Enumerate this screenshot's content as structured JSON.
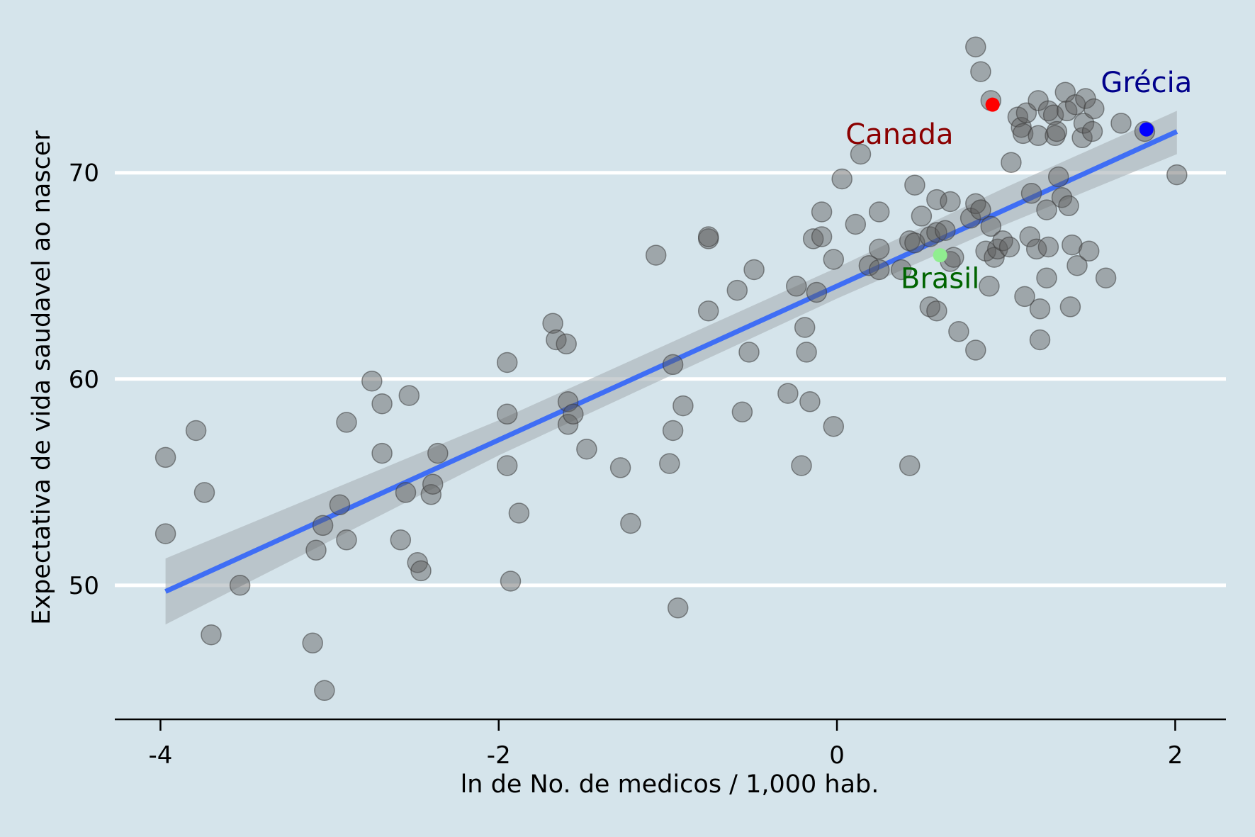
{
  "chart_data": {
    "type": "scatter",
    "title": "",
    "xlabel": "ln de No. de medicos / 1,000 hab.",
    "ylabel": "Expectativa de vida saudavel ao nascer",
    "xlim": [
      -4.27,
      2.3
    ],
    "ylim": [
      43.5,
      77.0
    ],
    "x_ticks": [
      -4,
      -2,
      0,
      2
    ],
    "x_tick_labels": [
      "-4",
      "-2",
      "0",
      "2"
    ],
    "y_ticks": [
      50,
      60,
      70
    ],
    "y_tick_labels": [
      "50",
      "60",
      "70"
    ],
    "grid": "horizontal",
    "colors": {
      "background": "#d5e4eb",
      "grid": "#ffffff",
      "points": "#5a5a5a",
      "fit_line": "#3f6ef5",
      "ci_band": "#a8b0b6"
    },
    "fit_line": {
      "x": [
        -3.97,
        2.01
      ],
      "y": [
        49.7,
        72.0
      ]
    },
    "ci_band": {
      "x": [
        -3.97,
        -2.0,
        0.0,
        1.0,
        2.01
      ],
      "upper": [
        51.3,
        58.0,
        65.4,
        69.3,
        73.0
      ],
      "lower": [
        48.1,
        56.3,
        63.9,
        67.5,
        70.9
      ]
    },
    "points": [
      [
        -3.97,
        56.2
      ],
      [
        -3.97,
        52.5
      ],
      [
        -3.79,
        57.5
      ],
      [
        -3.74,
        54.5
      ],
      [
        -3.7,
        47.6
      ],
      [
        -3.53,
        50.0
      ],
      [
        -3.1,
        47.2
      ],
      [
        -3.08,
        51.7
      ],
      [
        -3.04,
        52.9
      ],
      [
        -3.03,
        44.9
      ],
      [
        -2.94,
        53.9
      ],
      [
        -2.9,
        57.9
      ],
      [
        -2.9,
        52.2
      ],
      [
        -2.75,
        59.9
      ],
      [
        -2.69,
        58.8
      ],
      [
        -2.69,
        56.4
      ],
      [
        -2.58,
        52.2
      ],
      [
        -2.55,
        54.5
      ],
      [
        -2.53,
        59.2
      ],
      [
        -2.48,
        51.1
      ],
      [
        -2.46,
        50.7
      ],
      [
        -2.4,
        54.4
      ],
      [
        -2.39,
        54.9
      ],
      [
        -2.36,
        56.4
      ],
      [
        -1.95,
        60.8
      ],
      [
        -1.95,
        58.3
      ],
      [
        -1.95,
        55.8
      ],
      [
        -1.93,
        50.2
      ],
      [
        -1.88,
        53.5
      ],
      [
        -1.68,
        62.7
      ],
      [
        -1.66,
        61.9
      ],
      [
        -1.6,
        61.7
      ],
      [
        -1.59,
        58.9
      ],
      [
        -1.59,
        57.8
      ],
      [
        -1.56,
        58.3
      ],
      [
        -1.48,
        56.6
      ],
      [
        -1.28,
        55.7
      ],
      [
        -1.22,
        53.0
      ],
      [
        -1.07,
        66.0
      ],
      [
        -0.99,
        55.9
      ],
      [
        -0.97,
        60.7
      ],
      [
        -0.97,
        57.5
      ],
      [
        -0.94,
        48.9
      ],
      [
        -0.91,
        58.7
      ],
      [
        -0.76,
        66.8
      ],
      [
        -0.76,
        66.9
      ],
      [
        -0.76,
        63.3
      ],
      [
        -0.59,
        64.3
      ],
      [
        -0.56,
        58.4
      ],
      [
        -0.52,
        61.3
      ],
      [
        -0.49,
        65.3
      ],
      [
        -0.29,
        59.3
      ],
      [
        -0.24,
        64.5
      ],
      [
        -0.21,
        55.8
      ],
      [
        -0.19,
        62.5
      ],
      [
        -0.18,
        61.3
      ],
      [
        -0.16,
        58.9
      ],
      [
        -0.14,
        66.8
      ],
      [
        -0.12,
        64.2
      ],
      [
        -0.09,
        66.9
      ],
      [
        -0.09,
        68.1
      ],
      [
        -0.02,
        57.7
      ],
      [
        -0.02,
        65.8
      ],
      [
        0.03,
        69.7
      ],
      [
        0.11,
        67.5
      ],
      [
        0.14,
        70.9
      ],
      [
        0.19,
        65.5
      ],
      [
        0.25,
        65.3
      ],
      [
        0.25,
        66.3
      ],
      [
        0.25,
        68.1
      ],
      [
        0.38,
        65.3
      ],
      [
        0.43,
        66.7
      ],
      [
        0.43,
        55.8
      ],
      [
        0.46,
        69.4
      ],
      [
        0.46,
        66.6
      ],
      [
        0.5,
        67.9
      ],
      [
        0.55,
        66.9
      ],
      [
        0.55,
        63.5
      ],
      [
        0.59,
        68.7
      ],
      [
        0.59,
        67.1
      ],
      [
        0.59,
        63.3
      ],
      [
        0.64,
        67.2
      ],
      [
        0.67,
        65.7
      ],
      [
        0.67,
        68.6
      ],
      [
        0.69,
        65.9
      ],
      [
        0.72,
        62.3
      ],
      [
        0.79,
        67.8
      ],
      [
        0.82,
        68.5
      ],
      [
        0.82,
        61.4
      ],
      [
        0.82,
        76.1
      ],
      [
        0.85,
        68.2
      ],
      [
        0.85,
        74.9
      ],
      [
        0.88,
        66.2
      ],
      [
        0.9,
        64.5
      ],
      [
        0.91,
        67.4
      ],
      [
        0.91,
        73.5
      ],
      [
        0.93,
        65.9
      ],
      [
        0.95,
        66.3
      ],
      [
        0.98,
        66.7
      ],
      [
        1.02,
        66.4
      ],
      [
        1.03,
        70.5
      ],
      [
        1.07,
        72.7
      ],
      [
        1.09,
        72.2
      ],
      [
        1.1,
        71.9
      ],
      [
        1.11,
        64.0
      ],
      [
        1.12,
        72.9
      ],
      [
        1.14,
        66.9
      ],
      [
        1.15,
        69.0
      ],
      [
        1.18,
        66.3
      ],
      [
        1.19,
        73.5
      ],
      [
        1.19,
        71.8
      ],
      [
        1.2,
        61.9
      ],
      [
        1.2,
        63.4
      ],
      [
        1.24,
        64.9
      ],
      [
        1.24,
        68.2
      ],
      [
        1.25,
        66.4
      ],
      [
        1.25,
        73.0
      ],
      [
        1.28,
        72.8
      ],
      [
        1.29,
        71.8
      ],
      [
        1.3,
        72.0
      ],
      [
        1.31,
        69.8
      ],
      [
        1.33,
        68.8
      ],
      [
        1.35,
        73.9
      ],
      [
        1.36,
        73.0
      ],
      [
        1.37,
        68.4
      ],
      [
        1.38,
        63.5
      ],
      [
        1.39,
        66.5
      ],
      [
        1.41,
        73.3
      ],
      [
        1.42,
        65.5
      ],
      [
        1.45,
        71.7
      ],
      [
        1.46,
        72.4
      ],
      [
        1.47,
        73.6
      ],
      [
        1.49,
        66.2
      ],
      [
        1.51,
        72.0
      ],
      [
        1.52,
        73.1
      ],
      [
        1.59,
        64.9
      ],
      [
        1.68,
        72.4
      ],
      [
        1.82,
        72.0
      ],
      [
        2.01,
        69.9
      ]
    ],
    "highlights": [
      {
        "name": "Canada",
        "x": 0.92,
        "y": 73.3,
        "point_color": "#ff0000",
        "label_color": "#8b0000",
        "label_dx": -0.55,
        "label_dy": -1.9
      },
      {
        "name": "Grécia",
        "x": 1.83,
        "y": 72.1,
        "point_color": "#0000ff",
        "label_color": "#00008b",
        "label_dx": 0.0,
        "label_dy": 1.8
      },
      {
        "name": "Brasil",
        "x": 0.61,
        "y": 66.0,
        "point_color": "#90ee90",
        "label_color": "#006400",
        "label_dx": 0.0,
        "label_dy": -1.6
      }
    ]
  }
}
